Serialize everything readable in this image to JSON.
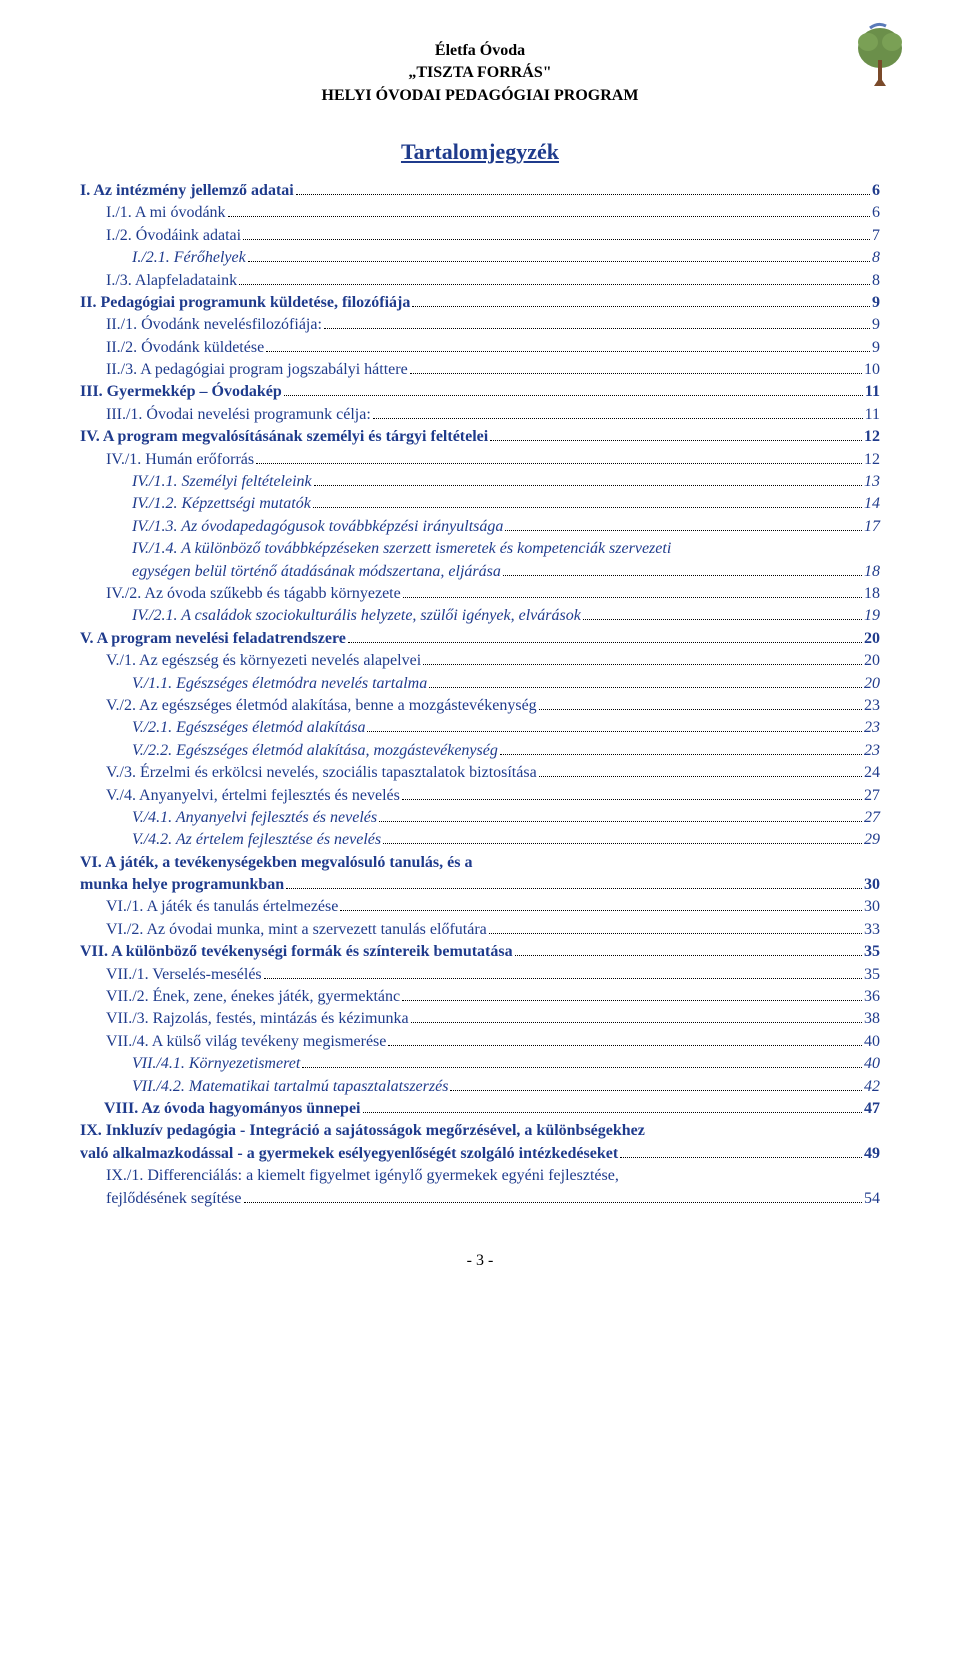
{
  "header": {
    "line1": "Életfa Óvoda",
    "line2": "„TISZTA FORRÁS\"",
    "line3": "HELYI ÓVODAI PEDAGÓGIAI PROGRAM"
  },
  "title": "Tartalomjegyzék",
  "colors": {
    "link": "#1f3b8c",
    "text": "#000000",
    "background": "#ffffff"
  },
  "toc": [
    {
      "level": 1,
      "num": "I.",
      "title": "Az intézmény jellemző adatai",
      "page": "6"
    },
    {
      "level": 2,
      "num": "I./1.",
      "title": "A mi óvodánk",
      "page": "6"
    },
    {
      "level": 2,
      "num": "I./2.",
      "title": "Óvodáink adatai",
      "page": "7"
    },
    {
      "level": 3,
      "num": "I./2.1.",
      "title": "Férőhelyek",
      "page": "8"
    },
    {
      "level": 2,
      "num": "I./3.",
      "title": "Alapfeladataink",
      "page": "8"
    },
    {
      "level": 1,
      "num": "II.",
      "title": "Pedagógiai programunk küldetése, filozófiája",
      "page": "9"
    },
    {
      "level": 2,
      "num": "II./1.",
      "title": "Óvodánk nevelésfilozófiája:",
      "page": "9"
    },
    {
      "level": 2,
      "num": "II./2.",
      "title": "Óvodánk küldetése",
      "page": "9"
    },
    {
      "level": 2,
      "num": "II./3.",
      "title": "A pedagógiai program jogszabályi háttere",
      "page": "10"
    },
    {
      "level": 1,
      "num": "III.",
      "title": "Gyermekkép – Óvodakép",
      "page": "11"
    },
    {
      "level": 2,
      "num": "III./1.",
      "title": "Óvodai nevelési programunk célja:",
      "page": "11"
    },
    {
      "level": 1,
      "num": "IV.",
      "title": "A program megvalósításának személyi és tárgyi feltételei",
      "page": "12"
    },
    {
      "level": 2,
      "num": "IV./1.",
      "title": "Humán erőforrás",
      "page": "12"
    },
    {
      "level": 3,
      "num": "IV./1.1.",
      "title": "Személyi feltételeink",
      "page": "13"
    },
    {
      "level": 3,
      "num": "IV./1.2.",
      "title": "Képzettségi mutatók",
      "page": "14"
    },
    {
      "level": 3,
      "num": "IV./1.3.",
      "title": "Az óvodapedagógusok továbbképzési irányultsága",
      "page": "17"
    },
    {
      "level": 3,
      "num": "IV./1.4.",
      "title": "A különböző továbbképzéseken szerzett ismeretek és kompetenciák szervezeti egységen belül történő átadásának módszertana, eljárása",
      "page": "18",
      "wrap": true
    },
    {
      "level": 2,
      "num": "IV./2.",
      "title": "Az óvoda szűkebb és tágabb környezete",
      "page": "18"
    },
    {
      "level": 3,
      "num": "IV./2.1.",
      "title": "A családok szociokulturális helyzete, szülői igények, elvárások",
      "page": "19"
    },
    {
      "level": 1,
      "num": "V.",
      "title": "A program nevelési feladatrendszere",
      "page": "20"
    },
    {
      "level": 2,
      "num": "V./1.",
      "title": "Az egészség és környezeti nevelés alapelvei",
      "page": "20"
    },
    {
      "level": 3,
      "num": "V./1.1.",
      "title": "Egészséges életmódra nevelés tartalma",
      "page": "20"
    },
    {
      "level": 2,
      "num": "V./2.",
      "title": "Az egészséges életmód alakítása, benne a mozgástevékenység",
      "page": "23"
    },
    {
      "level": 3,
      "num": "V./2.1.",
      "title": "Egészséges életmód alakítása",
      "page": "23"
    },
    {
      "level": 3,
      "num": "V./2.2.",
      "title": "Egészséges életmód alakítása, mozgástevékenység",
      "page": "23"
    },
    {
      "level": 2,
      "num": "V./3.",
      "title": "Érzelmi és erkölcsi nevelés, szociális tapasztalatok biztosítása",
      "page": "24"
    },
    {
      "level": 2,
      "num": "V./4.",
      "title": "Anyanyelvi, értelmi fejlesztés és nevelés",
      "page": "27"
    },
    {
      "level": 3,
      "num": "V./4.1.",
      "title": "Anyanyelvi fejlesztés és nevelés",
      "page": "27"
    },
    {
      "level": 3,
      "num": "V./4.2.",
      "title": "Az értelem fejlesztése és nevelés",
      "page": "29"
    },
    {
      "level": 1,
      "num": "VI.",
      "title": "A játék, a tevékenységekben megvalósuló tanulás, és a munka helye programunkban",
      "page": "30",
      "wrap": true,
      "wrapNoIndent": true
    },
    {
      "level": 2,
      "num": "VI./1.",
      "title": "A játék és tanulás értelmezése",
      "page": "30"
    },
    {
      "level": 2,
      "num": "VI./2.",
      "title": "Az óvodai munka, mint a szervezett tanulás előfutára",
      "page": "33"
    },
    {
      "level": 1,
      "num": "VII.",
      "title": "A különböző tevékenységi formák és színtereik bemutatása",
      "page": "35"
    },
    {
      "level": 2,
      "num": "VII./1.",
      "title": "Verselés-mesélés",
      "page": "35"
    },
    {
      "level": 2,
      "num": "VII./2.",
      "title": "Ének, zene, énekes játék, gyermektánc",
      "page": "36"
    },
    {
      "level": 2,
      "num": "VII./3.",
      "title": "Rajzolás, festés, mintázás és kézimunka",
      "page": "38"
    },
    {
      "level": 2,
      "num": "VII./4.",
      "title": "A külső világ tevékeny megismerése",
      "page": "40"
    },
    {
      "level": 3,
      "num": "VII./4.1.",
      "title": "Környezetismeret",
      "page": "40"
    },
    {
      "level": 3,
      "num": "VII./4.2.",
      "title": "Matematikai tartalmú tapasztalatszerzés",
      "page": "42"
    },
    {
      "level": 1,
      "num": "VIII.",
      "title": "Az óvoda hagyományos ünnepei",
      "page": "47",
      "extraIndent": true
    },
    {
      "level": 1,
      "num": "IX.",
      "title": "Inkluzív pedagógia - Integráció a sajátosságok megőrzésével, a különbségekhez való alkalmazkodással - a gyermekek esélyegyenlőségét szolgáló intézkedéseket",
      "page": "49",
      "wrap": true,
      "wrapNoIndent": true
    },
    {
      "level": 2,
      "num": "IX./1.",
      "title": "Differenciálás: a kiemelt figyelmet igénylő gyermekek egyéni fejlesztése, fejlődésének segítése",
      "page": "54",
      "wrap": true
    }
  ],
  "footer": "- 3 -"
}
